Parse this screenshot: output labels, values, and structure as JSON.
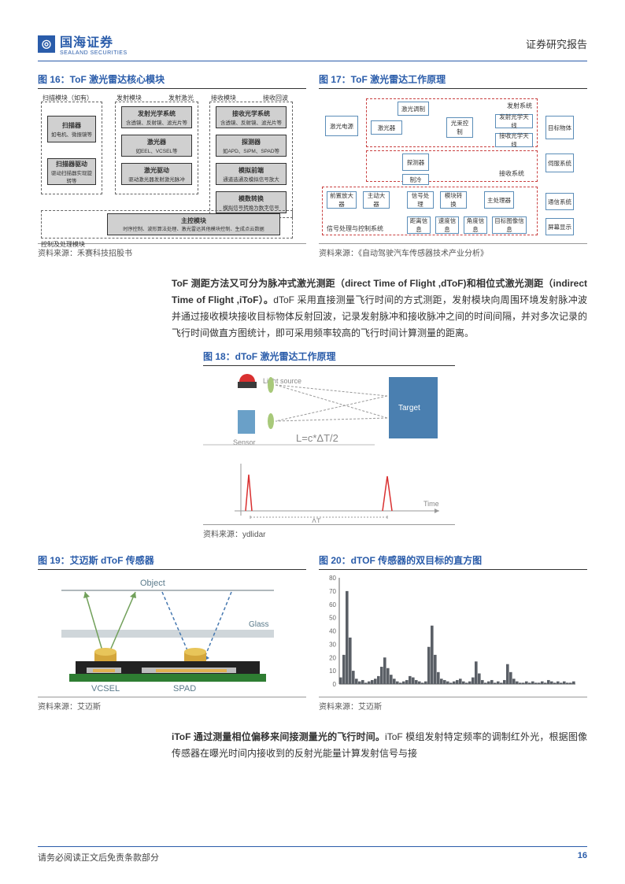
{
  "header": {
    "company_cn": "国海证券",
    "company_en": "SEALAND SECURITIES",
    "doc_type": "证券研究报告"
  },
  "footer": {
    "disclaimer": "请务必阅读正文后免责条款部分",
    "page": "16"
  },
  "fig16": {
    "title": "图 16：ToF 激光雷达核心模块",
    "caption": "资料来源：禾赛科技招股书",
    "labels": {
      "scan_module": "扫描模块（如有）",
      "emit_module": "发射模块",
      "recv_module": "接收模块",
      "emit_laser": "发射激光",
      "recv_echo": "接收回波",
      "scanner": "扫描器",
      "scanner_sub": "如电机、微振镜等",
      "scanner_drive": "扫描器驱动",
      "scanner_drive_sub": "驱动扫描器实现旋转等",
      "emit_optics": "发射光学系统",
      "emit_optics_sub": "含透镜、反射镜、滤光片等",
      "laser": "激光器",
      "laser_sub": "如EEL、VCSEL等",
      "laser_drive": "激光驱动",
      "laser_drive_sub": "驱动激光器发射激光脉冲",
      "recv_optics": "接收光学系统",
      "recv_optics_sub": "含透镜、反射镜、滤光片等",
      "detector": "探测器",
      "detector_sub": "如APD、SiPM、SPAD等",
      "analog": "模拟前端",
      "analog_sub": "通道选通及模拟信号放大",
      "adc": "模数转换",
      "adc_sub": "模拟信号转换为数字信号",
      "main": "主控模块",
      "main_sub": "时序控制、波形算法处理、激光雷达其他模块控制、生成点云数据",
      "ctrl_proc": "控制及处理模块"
    }
  },
  "fig17": {
    "title": "图 17：ToF 激光雷达工作原理",
    "caption": "资料来源：《自动驾驶汽车传感器技术产业分析》",
    "boxes": {
      "power": "激光电源",
      "mod": "激光调制",
      "laser": "激光器",
      "beam": "光束控制",
      "tx_ant": "发射光学天线",
      "rx_ant": "接收光学天线",
      "target": "目标物体",
      "det": "探测器",
      "cool": "制冷",
      "servo": "伺服系统",
      "preamp": "前置放大器",
      "mainamp": "主动大器",
      "sigproc": "信号处理",
      "modconv": "模块转换",
      "mainproc": "主处理器",
      "dist": "距离信息",
      "vel": "速度信息",
      "ang": "角度信息",
      "tgtimg": "目标图像信息",
      "comm": "通信系统",
      "disp": "屏幕显示",
      "tx_zone": "发射系统",
      "rx_zone": "接收系统",
      "sp_zone": "信号处理与控制系统"
    }
  },
  "para1": "ToF 测距方法又可分为脉冲式激光测距（direct Time of Flight ,dToF)和相位式激光测距（indirect Time of Flight ,iToF）。",
  "para1b": "dToF 采用直接测量飞行时间的方式测距，发射模块向周围环境发射脉冲波并通过接收模块接收目标物体反射回波，记录发射脉冲和接收脉冲之间的时间间隔，并对多次记录的飞行时间做直方图统计，即可采用频率较高的飞行时间计算测量的距离。",
  "fig18": {
    "title": "图 18：dToF 激光雷达工作原理",
    "caption": "资料来源：ydlidar",
    "labels": {
      "light": "Light source",
      "sensor": "Sensor",
      "target": "Target",
      "formula": "L=c*ΔT/2",
      "dt": "ΔT",
      "time": "Time"
    }
  },
  "fig19": {
    "title": "图 19：艾迈斯 dToF 传感器",
    "caption": "资料来源：艾迈斯",
    "labels": {
      "object": "Object",
      "glass": "Glass",
      "vcsel": "VCSEL",
      "spad": "SPAD"
    },
    "colors": {
      "pcb": "#2e7d32",
      "black": "#222",
      "lens_top": "#e8c55a",
      "lens_body": "#d4a63b",
      "base": "#bdbdbd"
    }
  },
  "fig20": {
    "title": "图 20：dTOF 传感器的双目标的直方图",
    "caption": "资料来源：艾迈斯",
    "ylim": [
      0,
      80
    ],
    "yticks": [
      0,
      10,
      20,
      30,
      40,
      50,
      60,
      70,
      80
    ],
    "bar_color": "#5a5f66",
    "values": [
      5,
      22,
      70,
      35,
      10,
      4,
      2,
      3,
      1,
      2,
      3,
      4,
      6,
      13,
      20,
      12,
      7,
      4,
      2,
      1,
      2,
      3,
      6,
      5,
      3,
      2,
      1,
      2,
      28,
      44,
      22,
      9,
      4,
      3,
      2,
      1,
      2,
      3,
      4,
      2,
      1,
      2,
      5,
      17,
      8,
      3,
      1,
      2,
      3,
      1,
      2,
      1,
      3,
      15,
      9,
      4,
      2,
      1,
      1,
      2,
      1,
      2,
      1,
      1,
      2,
      1,
      3,
      2,
      1,
      2,
      1,
      2,
      1,
      1,
      2
    ]
  },
  "para2": "iToF 通过测量相位偏移来间接测量光的飞行时间。",
  "para2b": "iToF 模组发射特定频率的调制红外光，根据图像传感器在曝光时间内接收到的反射光能量计算发射信号与接"
}
